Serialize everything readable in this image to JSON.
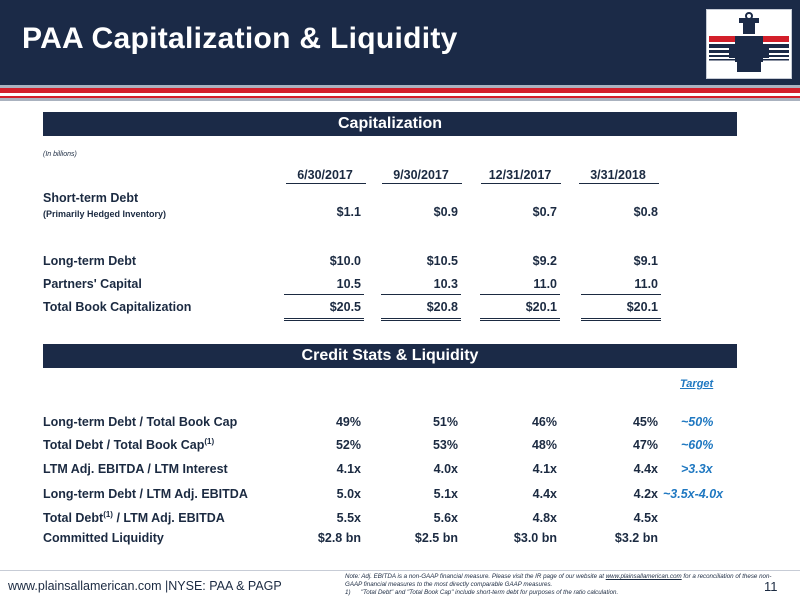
{
  "header": {
    "title": "PAA Capitalization & Liquidity"
  },
  "logo": {
    "icon": "valve-tower-logo-icon"
  },
  "capitalization": {
    "section_title": "Capitalization",
    "units": "(In billions)",
    "columns": [
      "6/30/2017",
      "9/30/2017",
      "12/31/2017",
      "3/31/2018"
    ],
    "rows": [
      {
        "label": "Short-term Debt",
        "sublabel": "(Primarily Hedged Inventory)",
        "values": [
          "$1.1",
          "$0.9",
          "$0.7",
          "$0.8"
        ]
      },
      {
        "label": "Long-term Debt",
        "values": [
          "$10.0",
          "$10.5",
          "$9.2",
          "$9.1"
        ]
      },
      {
        "label": "Partners' Capital",
        "values": [
          "10.5",
          "10.3",
          "11.0",
          "11.0"
        ]
      },
      {
        "label": "Total Book Capitalization",
        "values": [
          "$20.5",
          "$20.8",
          "$20.1",
          "$20.1"
        ]
      }
    ]
  },
  "credit": {
    "section_title": "Credit Stats & Liquidity",
    "target_header": "Target",
    "rows": [
      {
        "label": "Long-term Debt / Total Book Cap",
        "values": [
          "49%",
          "51%",
          "46%",
          "45%"
        ],
        "target": "~50%"
      },
      {
        "label_pre": "Total Debt / Total Book Cap",
        "label_sup": "(1)",
        "values": [
          "52%",
          "53%",
          "48%",
          "47%"
        ],
        "target": "~60%"
      },
      {
        "label": "LTM Adj. EBITDA / LTM Interest",
        "values": [
          "4.1x",
          "4.0x",
          "4.1x",
          "4.4x"
        ],
        "target": ">3.3x"
      },
      {
        "label": "Long-term Debt / LTM Adj. EBITDA",
        "values": [
          "5.0x",
          "5.1x",
          "4.4x",
          "4.2x"
        ],
        "target": "~3.5x-4.0x"
      },
      {
        "label_pre": "Total Debt",
        "label_sup": "(1)",
        "label_post": " / LTM Adj. EBITDA",
        "values": [
          "5.5x",
          "5.6x",
          "4.8x",
          "4.5x"
        ],
        "target": ""
      },
      {
        "label": "Committed Liquidity",
        "values": [
          "$2.8 bn",
          "$2.5 bn",
          "$3.0 bn",
          "$3.2 bn"
        ],
        "target": ""
      }
    ]
  },
  "footer": {
    "site": "www.plainsallamerican.com",
    "separator": "|",
    "tickers": "NYSE: PAA & PAGP",
    "note_prefix": "Note: Adj. EBITDA is a non-GAAP financial measure. Please visit the IR page of our website at ",
    "note_link": "www.plainsallamerican.com",
    "note_suffix": " for a reconciliation of these non-GAAP financial measures to the most directly comparable GAAP measures.",
    "footnote_num": "1)",
    "footnote_text": "\"Total Debt\" and \"Total Book Cap\" include short-term debt for purposes of the ratio calculation.",
    "page_number": "11"
  },
  "colors": {
    "navy": "#1b2a47",
    "red": "#d31f2a",
    "target_blue": "#1f78c1"
  }
}
